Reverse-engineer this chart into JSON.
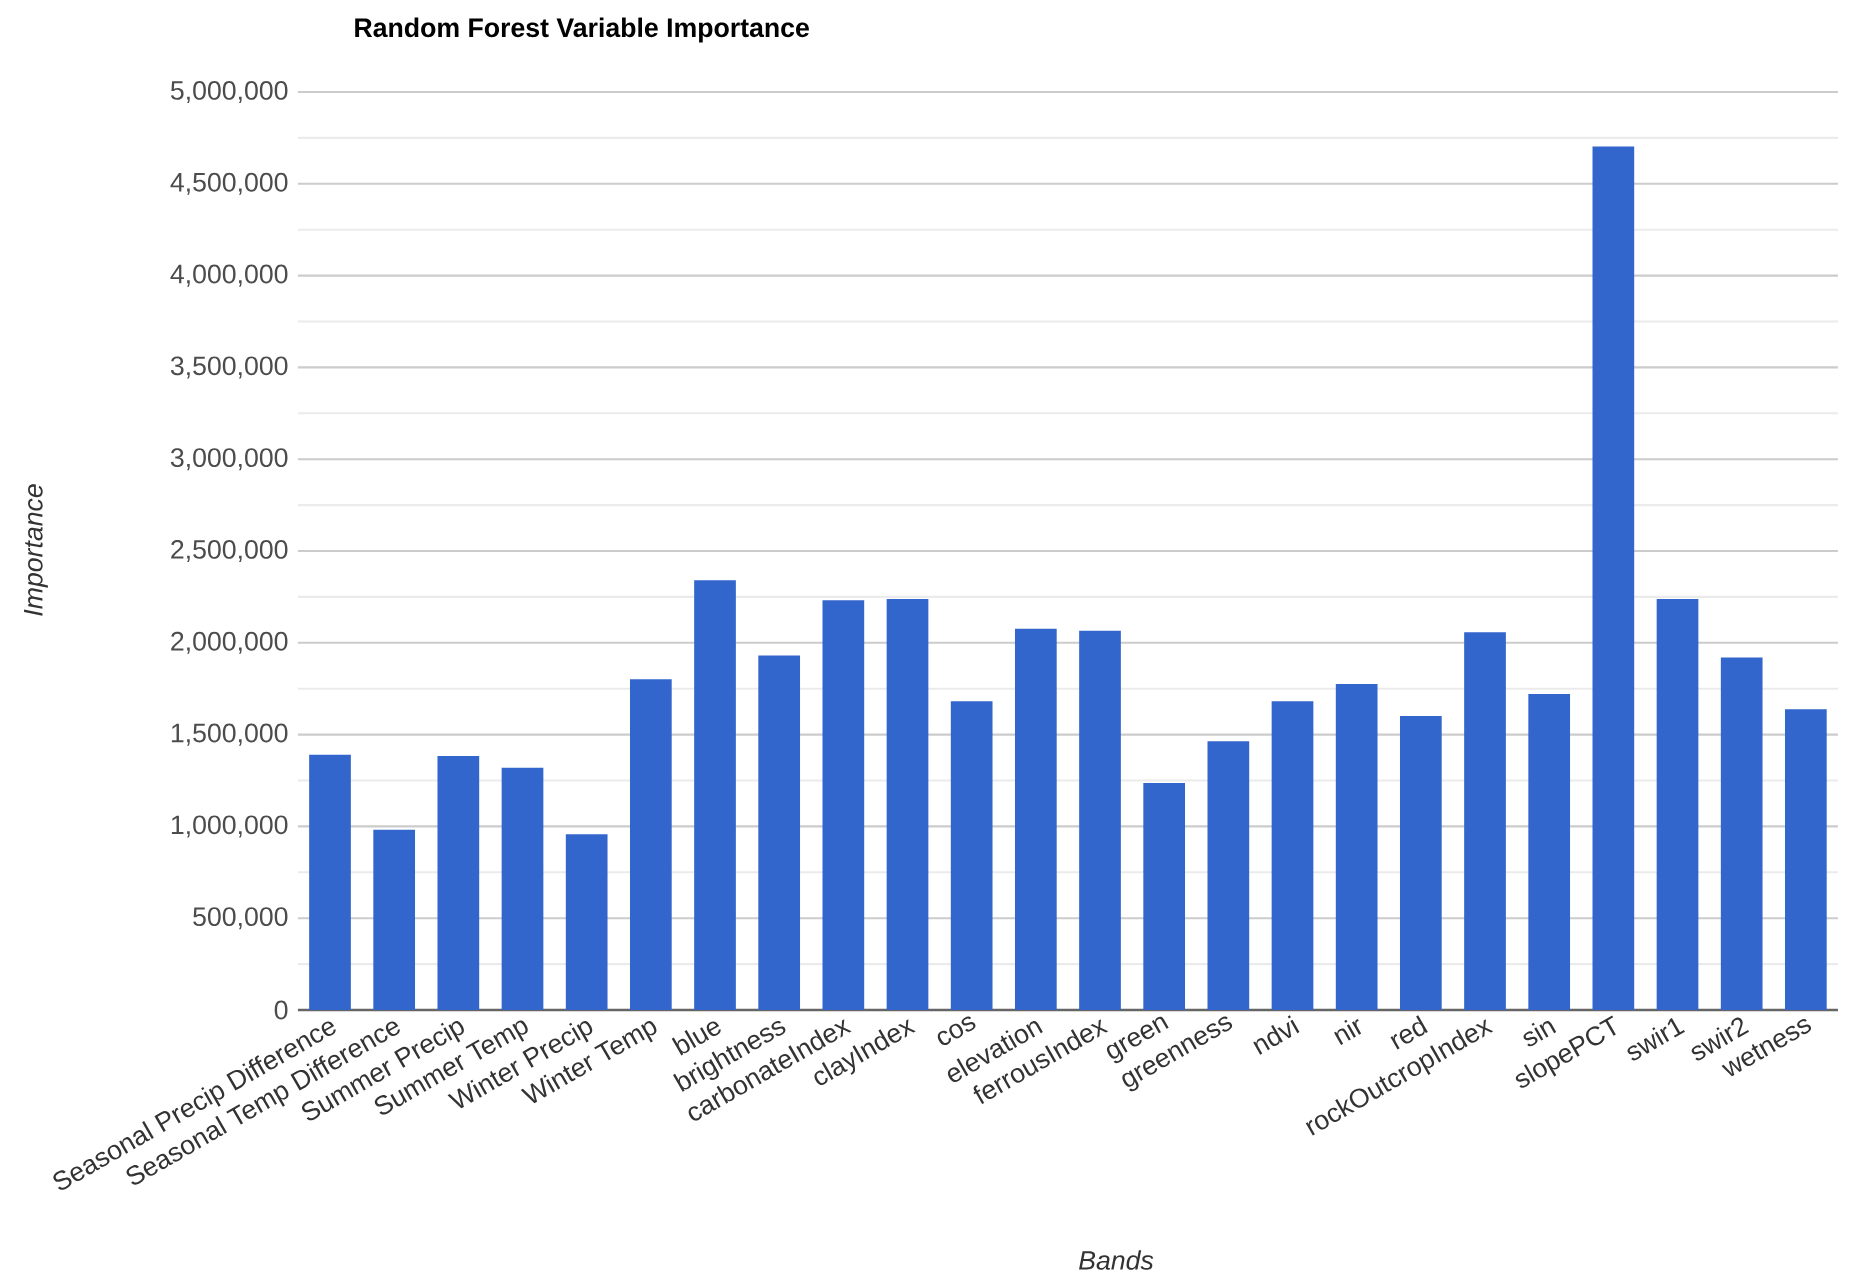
{
  "chart_data": {
    "type": "bar",
    "title": "Random Forest Variable Importance",
    "xlabel": "Bands",
    "ylabel": "Importance",
    "categories": [
      "Seasonal Precip Difference",
      "Seasonal Temp Difference",
      "Summer Precip",
      "Summer Temp",
      "Winter Precip",
      "Winter Temp",
      "blue",
      "brightness",
      "carbonateIndex",
      "clayIndex",
      "cos",
      "elevation",
      "ferrousIndex",
      "green",
      "greenness",
      "ndvi",
      "nir",
      "red",
      "rockOutcropIndex",
      "sin",
      "slopePCT",
      "swir1",
      "swir2",
      "wetness"
    ],
    "values": [
      1390000,
      982000,
      1384000,
      1319000,
      957000,
      1801000,
      2341000,
      1931000,
      2232000,
      2239000,
      1681000,
      2076000,
      2065000,
      1236000,
      1464000,
      1681000,
      1775000,
      1601000,
      2058000,
      1721000,
      4703000,
      2239000,
      1920000,
      1638000
    ],
    "color": "#3366cc",
    "ylim": [
      0,
      5000000
    ],
    "yticks": [
      {
        "value": 0,
        "label": "0"
      },
      {
        "value": 250000,
        "label": null
      },
      {
        "value": 500000,
        "label": "500,000"
      },
      {
        "value": 750000,
        "label": null
      },
      {
        "value": 1000000,
        "label": "1,000,000"
      },
      {
        "value": 1250000,
        "label": null
      },
      {
        "value": 1500000,
        "label": "1,500,000"
      },
      {
        "value": 1750000,
        "label": null
      },
      {
        "value": 2000000,
        "label": "2,000,000"
      },
      {
        "value": 2250000,
        "label": null
      },
      {
        "value": 2500000,
        "label": "2,500,000"
      },
      {
        "value": 2750000,
        "label": null
      },
      {
        "value": 3000000,
        "label": "3,000,000"
      },
      {
        "value": 3250000,
        "label": null
      },
      {
        "value": 3500000,
        "label": "3,500,000"
      },
      {
        "value": 3750000,
        "label": null
      },
      {
        "value": 4000000,
        "label": "4,000,000"
      },
      {
        "value": 4250000,
        "label": null
      },
      {
        "value": 4500000,
        "label": "4,500,000"
      },
      {
        "value": 4750000,
        "label": null
      },
      {
        "value": 5000000,
        "label": "5,000,000"
      }
    ],
    "grid": "y"
  }
}
